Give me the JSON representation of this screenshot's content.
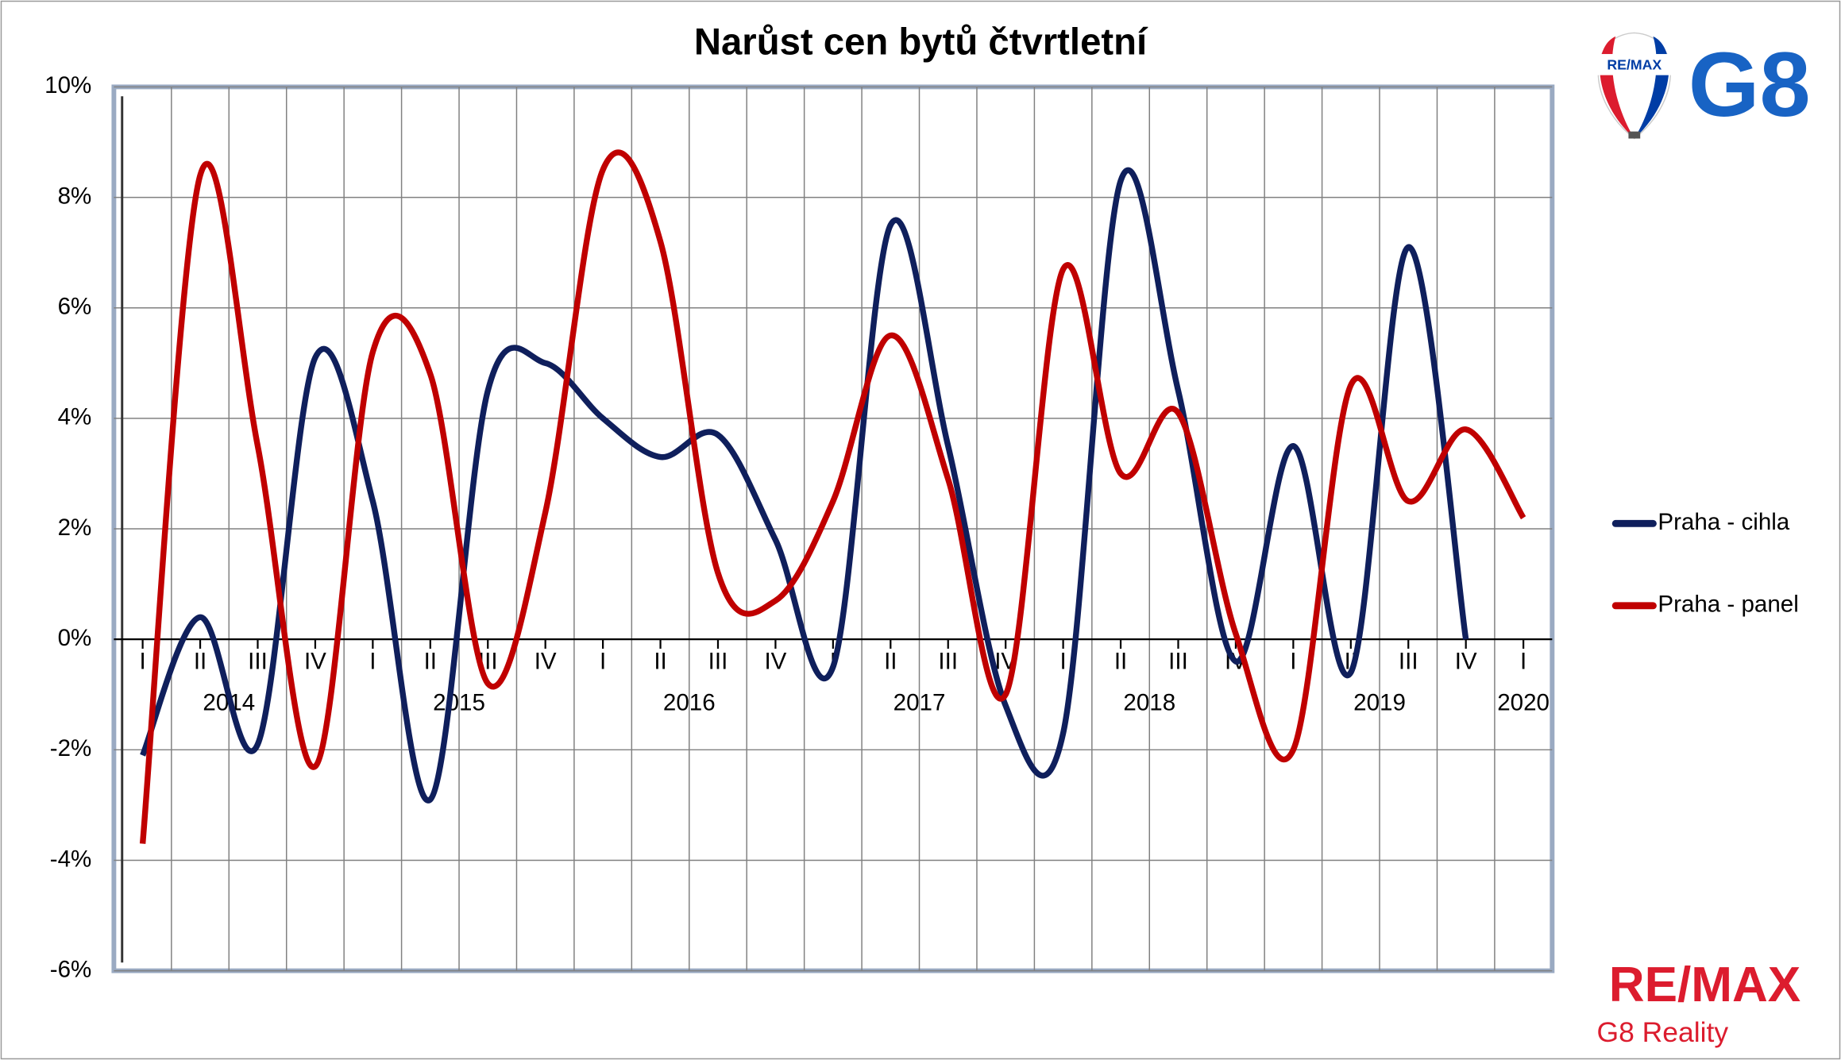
{
  "chart_data": {
    "type": "line",
    "title": "Narůst cen bytů čtvrtletní",
    "categories": [
      "I",
      "II",
      "III",
      "IV",
      "I",
      "II",
      "III",
      "IV",
      "I",
      "II",
      "III",
      "IV",
      "I",
      "II",
      "III",
      "IV",
      "I",
      "II",
      "III",
      "IV",
      "I",
      "II",
      "III",
      "IV",
      "I"
    ],
    "years": [
      "2014",
      "2015",
      "2016",
      "2017",
      "2018",
      "2019",
      "2020"
    ],
    "series": [
      {
        "name": "Praha - cihla",
        "color": "#0f1f5c",
        "values": [
          -2.1,
          0.4,
          -1.9,
          5.1,
          2.5,
          -2.9,
          4.5,
          5.0,
          4.0,
          3.3,
          3.7,
          1.8,
          -0.5,
          7.5,
          3.5,
          -1.2,
          -1.7,
          8.3,
          4.5,
          -0.4,
          3.5,
          -0.6,
          7.1,
          0.0,
          null
        ]
      },
      {
        "name": "Praha - panel",
        "color": "#c00000",
        "values": [
          -3.7,
          8.4,
          3.5,
          -2.3,
          5.2,
          4.8,
          -0.8,
          2.3,
          8.5,
          7.2,
          1.2,
          0.7,
          2.5,
          5.5,
          2.9,
          -1.0,
          6.7,
          3.0,
          4.1,
          0.1,
          -2.0,
          4.6,
          2.5,
          3.8,
          2.2
        ]
      }
    ],
    "ylim": [
      -6,
      10
    ],
    "yticks": [
      {
        "value": -6,
        "label": "-6%"
      },
      {
        "value": -4,
        "label": "-4%"
      },
      {
        "value": -2,
        "label": "-2%"
      },
      {
        "value": 0,
        "label": "0%"
      },
      {
        "value": 2,
        "label": "2%"
      },
      {
        "value": 4,
        "label": "4%"
      },
      {
        "value": 6,
        "label": "6%"
      },
      {
        "value": 8,
        "label": "8%"
      },
      {
        "value": 10,
        "label": "10%"
      }
    ],
    "grid": true,
    "legend": "right"
  },
  "logos": {
    "balloon": "RE/MAX",
    "top": "G8",
    "bottom": "RE/MAX",
    "bottom_sub": "G8 Reality"
  }
}
